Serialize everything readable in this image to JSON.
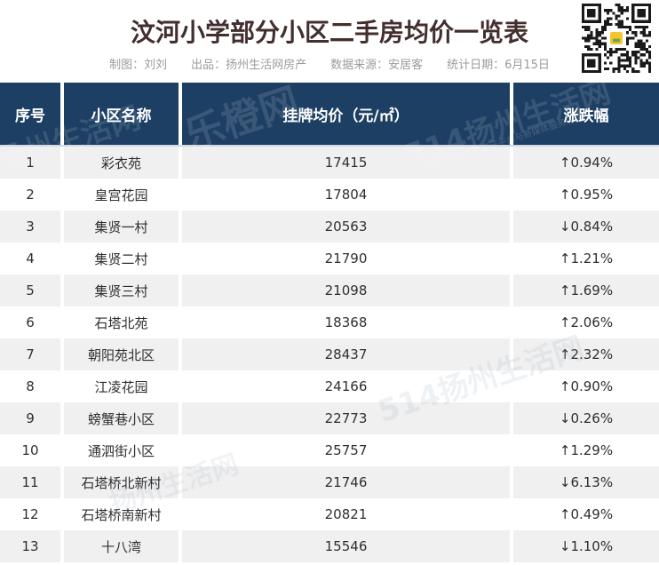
{
  "header": {
    "title": "汶河小学部分小区二手房均价一览表",
    "credits": [
      "制图：刘刘",
      "出品：扬州生活网房产",
      "数据来源：安居客",
      "统计日期：6月15日"
    ]
  },
  "qr": {
    "label": "qr-code"
  },
  "watermarks": {
    "brand_large": "乐橙网",
    "site": "514扬州生活网",
    "site_short": "扬州生活网",
    "slogan": "领先本地的生活资讯平台与新媒体服务提供商"
  },
  "colors": {
    "header_bg": "#1d3f63",
    "stripe": "#f0f0f0",
    "title": "#432e2e",
    "credit_text": "#9b9b9b",
    "body_text": "#2f2f2f"
  },
  "table": {
    "columns": [
      "序号",
      "小区名称",
      "挂牌均价（元/㎡）",
      "涨跌幅"
    ],
    "rows": [
      {
        "no": "1",
        "name": "彩衣苑",
        "price": "17415",
        "change": "↑0.94%",
        "direction": "up"
      },
      {
        "no": "2",
        "name": "皇宫花园",
        "price": "17804",
        "change": "↑0.95%",
        "direction": "up"
      },
      {
        "no": "3",
        "name": "集贤一村",
        "price": "20563",
        "change": "↓0.84%",
        "direction": "down"
      },
      {
        "no": "4",
        "name": "集贤二村",
        "price": "21790",
        "change": "↑1.21%",
        "direction": "up"
      },
      {
        "no": "5",
        "name": "集贤三村",
        "price": "21098",
        "change": "↑1.69%",
        "direction": "up"
      },
      {
        "no": "6",
        "name": "石塔北苑",
        "price": "18368",
        "change": "↑2.06%",
        "direction": "up"
      },
      {
        "no": "7",
        "name": "朝阳苑北区",
        "price": "28437",
        "change": "↑2.32%",
        "direction": "up"
      },
      {
        "no": "8",
        "name": "江凌花园",
        "price": "24166",
        "change": "↑0.90%",
        "direction": "up"
      },
      {
        "no": "9",
        "name": "螃蟹巷小区",
        "price": "22773",
        "change": "↓0.26%",
        "direction": "down"
      },
      {
        "no": "10",
        "name": "通泗街小区",
        "price": "25757",
        "change": "↑1.29%",
        "direction": "up"
      },
      {
        "no": "11",
        "name": "石塔桥北新村",
        "price": "21746",
        "change": "↓6.13%",
        "direction": "down"
      },
      {
        "no": "12",
        "name": "石塔桥南新村",
        "price": "20821",
        "change": "↑0.49%",
        "direction": "up"
      },
      {
        "no": "13",
        "name": "十八湾",
        "price": "15546",
        "change": "↓1.10%",
        "direction": "down"
      }
    ]
  },
  "chart_data": {
    "type": "table",
    "title": "汶河小学部分小区二手房均价一览表",
    "columns": [
      "序号",
      "小区名称",
      "挂牌均价（元/㎡）",
      "涨跌幅"
    ],
    "rows": [
      [
        1,
        "彩衣苑",
        17415,
        "+0.94%"
      ],
      [
        2,
        "皇宫花园",
        17804,
        "+0.95%"
      ],
      [
        3,
        "集贤一村",
        20563,
        "-0.84%"
      ],
      [
        4,
        "集贤二村",
        21790,
        "+1.21%"
      ],
      [
        5,
        "集贤三村",
        21098,
        "+1.69%"
      ],
      [
        6,
        "石塔北苑",
        18368,
        "+2.06%"
      ],
      [
        7,
        "朝阳苑北区",
        28437,
        "+2.32%"
      ],
      [
        8,
        "江凌花园",
        24166,
        "+0.90%"
      ],
      [
        9,
        "螃蟹巷小区",
        22773,
        "-0.26%"
      ],
      [
        10,
        "通泗街小区",
        25757,
        "+1.29%"
      ],
      [
        11,
        "石塔桥北新村",
        21746,
        "-6.13%"
      ],
      [
        12,
        "石塔桥南新村",
        20821,
        "+0.49%"
      ],
      [
        13,
        "十八湾",
        15546,
        "-1.10%"
      ]
    ]
  }
}
